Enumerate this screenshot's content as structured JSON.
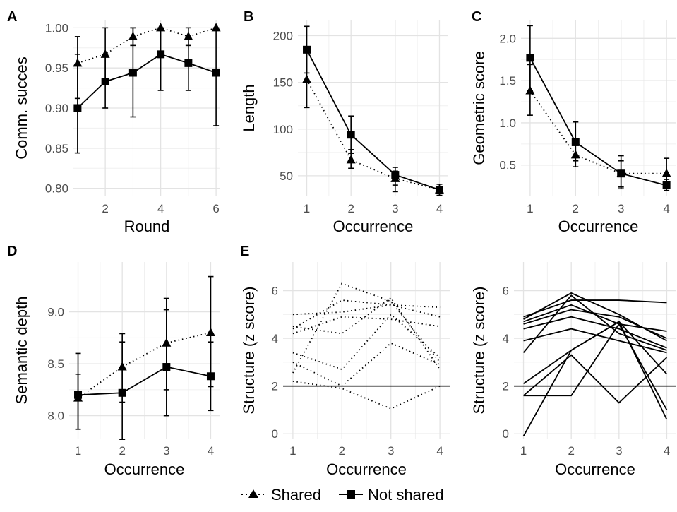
{
  "legend": {
    "items": [
      {
        "label": "Shared",
        "style": "dotted",
        "marker": "triangle"
      },
      {
        "label": "Not shared",
        "style": "solid",
        "marker": "square"
      }
    ]
  },
  "chart_data": [
    {
      "id": "A",
      "panel_label": "A",
      "type": "line",
      "xlabel": "Round",
      "ylabel": "Comm. succes",
      "xlim": [
        0.85,
        6.15
      ],
      "ylim": [
        0.79,
        1.01
      ],
      "xticks": [
        2,
        4,
        6
      ],
      "yticks": [
        0.8,
        0.85,
        0.9,
        0.95,
        1.0
      ],
      "ytick_labels": [
        "0.80",
        "0.85",
        "0.90",
        "0.95",
        "1.00"
      ],
      "series": [
        {
          "name": "Shared",
          "style": "dotted",
          "marker": "triangle",
          "x": [
            1,
            2,
            3,
            4,
            5,
            6
          ],
          "y": [
            0.956,
            0.967,
            0.989,
            1.0,
            0.989,
            1.0
          ],
          "err_low": [
            0.912,
            0.934,
            0.978,
            1.0,
            0.978,
            1.0
          ],
          "err_high": [
            0.989,
            1.0,
            1.0,
            1.0,
            1.0,
            1.0
          ]
        },
        {
          "name": "Not shared",
          "style": "solid",
          "marker": "square",
          "x": [
            1,
            2,
            3,
            4,
            5,
            6
          ],
          "y": [
            0.9,
            0.933,
            0.944,
            0.967,
            0.956,
            0.944
          ],
          "err_low": [
            0.844,
            0.9,
            0.889,
            0.922,
            0.922,
            0.878
          ],
          "err_high": [
            0.967,
            0.967,
            1.0,
            1.0,
            0.989,
            1.0
          ]
        }
      ]
    },
    {
      "id": "B",
      "panel_label": "B",
      "type": "line",
      "xlabel": "Occurrence",
      "ylabel": "Length",
      "xlim": [
        0.8,
        4.2
      ],
      "ylim": [
        28,
        217
      ],
      "xticks": [
        1,
        2,
        3,
        4
      ],
      "yticks": [
        50,
        100,
        150,
        200
      ],
      "ytick_labels": [
        "50",
        "100",
        "150",
        "200"
      ],
      "series": [
        {
          "name": "Shared",
          "style": "dotted",
          "marker": "triangle",
          "x": [
            1,
            2,
            3,
            4
          ],
          "y": [
            153,
            67,
            47,
            35
          ],
          "err_low": [
            123,
            58,
            40,
            29
          ],
          "err_high": [
            183,
            78,
            55,
            41
          ]
        },
        {
          "name": "Not shared",
          "style": "solid",
          "marker": "square",
          "x": [
            1,
            2,
            3,
            4
          ],
          "y": [
            185,
            94,
            51,
            35
          ],
          "err_low": [
            160,
            74,
            33,
            29
          ],
          "err_high": [
            210,
            114,
            59,
            41
          ]
        }
      ]
    },
    {
      "id": "C",
      "panel_label": "C",
      "type": "line",
      "xlabel": "Occurrence",
      "ylabel": "Geometric score",
      "xlim": [
        0.8,
        4.2
      ],
      "ylim": [
        0.13,
        2.22
      ],
      "xticks": [
        1,
        2,
        3,
        4
      ],
      "yticks": [
        0.5,
        1.0,
        1.5,
        2.0
      ],
      "ytick_labels": [
        "0.5",
        "1.0",
        "1.5",
        "2.0"
      ],
      "series": [
        {
          "name": "Shared",
          "style": "dotted",
          "marker": "triangle",
          "x": [
            1,
            2,
            3,
            4
          ],
          "y": [
            1.38,
            0.62,
            0.4,
            0.4
          ],
          "err_low": [
            1.09,
            0.48,
            0.24,
            0.23
          ],
          "err_high": [
            1.69,
            0.78,
            0.61,
            0.58
          ]
        },
        {
          "name": "Not shared",
          "style": "solid",
          "marker": "square",
          "x": [
            1,
            2,
            3,
            4
          ],
          "y": [
            1.77,
            0.77,
            0.4,
            0.26
          ],
          "err_low": [
            1.38,
            0.55,
            0.22,
            0.2
          ],
          "err_high": [
            2.15,
            1.01,
            0.55,
            0.33
          ]
        }
      ]
    },
    {
      "id": "D",
      "panel_label": "D",
      "type": "line",
      "xlabel": "Occurrence",
      "ylabel": "Semantic depth",
      "xlim": [
        0.8,
        4.2
      ],
      "ylim": [
        7.78,
        9.48
      ],
      "xticks": [
        1,
        2,
        3,
        4
      ],
      "yticks": [
        8.0,
        8.5,
        9.0
      ],
      "ytick_labels": [
        "8.0",
        "8.5",
        "9.0"
      ],
      "series": [
        {
          "name": "Shared",
          "style": "dotted",
          "marker": "triangle",
          "x": [
            1,
            2,
            3,
            4
          ],
          "y": [
            8.17,
            8.47,
            8.7,
            8.8
          ],
          "err_low": [
            7.87,
            8.13,
            8.25,
            8.28
          ],
          "err_high": [
            8.4,
            8.79,
            9.13,
            9.34
          ]
        },
        {
          "name": "Not shared",
          "style": "solid",
          "marker": "square",
          "x": [
            1,
            2,
            3,
            4
          ],
          "y": [
            8.2,
            8.22,
            8.47,
            8.38
          ],
          "err_low": [
            7.87,
            7.77,
            8.0,
            8.05
          ],
          "err_high": [
            8.6,
            8.71,
            9.02,
            8.71
          ]
        }
      ]
    },
    {
      "id": "E1",
      "panel_label": "E",
      "type": "line",
      "xlabel": "Occurrence",
      "ylabel": "Structure (z score)",
      "xlim": [
        0.8,
        4.2
      ],
      "ylim": [
        -0.2,
        7.2
      ],
      "xticks": [
        1,
        2,
        3,
        4
      ],
      "yticks": [
        0,
        2,
        4,
        6
      ],
      "ytick_labels": [
        "0",
        "2",
        "4",
        "6"
      ],
      "hline": 2,
      "series_style": "dotted",
      "series": [
        {
          "x": [
            1,
            2,
            3,
            4
          ],
          "y": [
            2.55,
            6.3,
            5.55,
            3.0
          ]
        },
        {
          "x": [
            1,
            2,
            3,
            4
          ],
          "y": [
            5.0,
            5.1,
            5.4,
            5.3
          ]
        },
        {
          "x": [
            1,
            2,
            3,
            4
          ],
          "y": [
            4.4,
            5.6,
            5.4,
            4.9
          ]
        },
        {
          "x": [
            1,
            2,
            3,
            4
          ],
          "y": [
            4.5,
            4.2,
            5.7,
            2.7
          ]
        },
        {
          "x": [
            1,
            2,
            3,
            4
          ],
          "y": [
            4.2,
            4.9,
            4.8,
            4.5
          ]
        },
        {
          "x": [
            1,
            2,
            3,
            4
          ],
          "y": [
            3.4,
            2.7,
            5.0,
            3.2
          ]
        },
        {
          "x": [
            1,
            2,
            3,
            4
          ],
          "y": [
            3.0,
            2.0,
            3.8,
            2.9
          ]
        },
        {
          "x": [
            1,
            2,
            3,
            4
          ],
          "y": [
            2.2,
            1.9,
            1.05,
            2.0
          ]
        }
      ]
    },
    {
      "id": "E2",
      "panel_label": "",
      "type": "line",
      "xlabel": "Occurrence",
      "ylabel": "Structure (z score)",
      "xlim": [
        0.8,
        4.2
      ],
      "ylim": [
        -0.2,
        7.2
      ],
      "xticks": [
        1,
        2,
        3,
        4
      ],
      "yticks": [
        0,
        2,
        4,
        6
      ],
      "ytick_labels": [
        "0",
        "2",
        "4",
        "6"
      ],
      "hline": 2,
      "series_style": "solid",
      "series": [
        {
          "x": [
            1,
            2,
            3,
            4
          ],
          "y": [
            4.8,
            5.9,
            5.0,
            3.9
          ]
        },
        {
          "x": [
            1,
            2,
            3,
            4
          ],
          "y": [
            4.9,
            5.6,
            5.6,
            5.5
          ]
        },
        {
          "x": [
            1,
            2,
            3,
            4
          ],
          "y": [
            4.7,
            5.4,
            4.6,
            4.3
          ]
        },
        {
          "x": [
            1,
            2,
            3,
            4
          ],
          "y": [
            4.6,
            5.2,
            4.9,
            4.0
          ]
        },
        {
          "x": [
            1,
            2,
            3,
            4
          ],
          "y": [
            4.4,
            4.9,
            4.4,
            3.6
          ]
        },
        {
          "x": [
            1,
            2,
            3,
            4
          ],
          "y": [
            3.9,
            4.4,
            3.9,
            3.4
          ]
        },
        {
          "x": [
            1,
            2,
            3,
            4
          ],
          "y": [
            3.4,
            5.8,
            4.2,
            3.5
          ]
        },
        {
          "x": [
            1,
            2,
            3,
            4
          ],
          "y": [
            2.1,
            3.5,
            4.7,
            2.5
          ]
        },
        {
          "x": [
            1,
            2,
            3,
            4
          ],
          "y": [
            1.6,
            3.3,
            1.3,
            3.2
          ]
        },
        {
          "x": [
            1,
            2,
            3,
            4
          ],
          "y": [
            1.6,
            1.6,
            4.6,
            1.0
          ]
        },
        {
          "x": [
            1,
            2,
            3,
            4
          ],
          "y": [
            -0.1,
            3.5,
            4.7,
            0.6
          ]
        }
      ]
    }
  ]
}
